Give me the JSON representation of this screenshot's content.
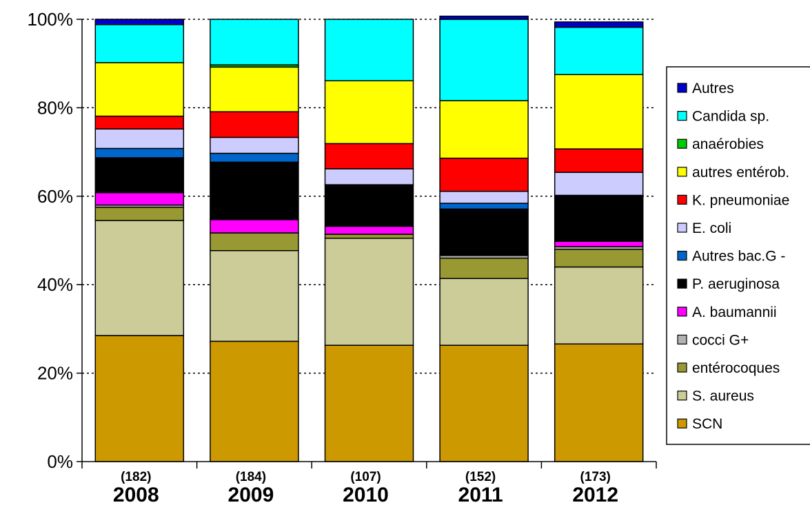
{
  "chart_data": {
    "type": "bar",
    "stacked": true,
    "percent": true,
    "categories": [
      "2008",
      "2009",
      "2010",
      "2011",
      "2012"
    ],
    "counts": [
      "(182)",
      "(184)",
      "(107)",
      "(152)",
      "(173)"
    ],
    "ylim": [
      0,
      100
    ],
    "yticks": [
      "0%",
      "20%",
      "40%",
      "60%",
      "80%",
      "100%"
    ],
    "grid": true,
    "legend_position": "right",
    "series": [
      {
        "name": "SCN",
        "color": "#CC9900",
        "values": [
          28.5,
          27.2,
          26.3,
          26.3,
          26.6
        ]
      },
      {
        "name": "S. aureus",
        "color": "#CCCC99",
        "values": [
          26.0,
          20.5,
          24.2,
          15.1,
          17.4
        ]
      },
      {
        "name": "entérocoques",
        "color": "#999933",
        "values": [
          3.0,
          4.0,
          0.9,
          4.6,
          4.0
        ]
      },
      {
        "name": "cocci G+",
        "color": "#B2B2B2",
        "values": [
          0.5,
          0.0,
          0.0,
          0.6,
          0.6
        ]
      },
      {
        "name": "A. baumannii",
        "color": "#FF00FF",
        "values": [
          2.8,
          3.0,
          1.8,
          0.0,
          1.2
        ]
      },
      {
        "name": "P. aeruginosa",
        "color": "#000000",
        "values": [
          7.9,
          13.0,
          9.4,
          10.5,
          10.4
        ]
      },
      {
        "name": "Autres bac.G -",
        "color": "#0066CC",
        "values": [
          2.1,
          2.0,
          0.0,
          1.3,
          0.0
        ]
      },
      {
        "name": "E. coli",
        "color": "#CCCCFF",
        "values": [
          4.4,
          3.6,
          3.6,
          2.7,
          5.2
        ]
      },
      {
        "name": "K. pneumoniae",
        "color": "#FF0000",
        "values": [
          2.9,
          5.8,
          5.7,
          7.5,
          5.3
        ]
      },
      {
        "name": "autres entérob.",
        "color": "#FFFF00",
        "values": [
          12.1,
          10.1,
          14.2,
          13.0,
          16.8
        ]
      },
      {
        "name": "anaérobies",
        "color": "#00CC00",
        "values": [
          0.0,
          0.5,
          0.0,
          0.0,
          0.0
        ]
      },
      {
        "name": "Candida sp.",
        "color": "#00FFFF",
        "values": [
          8.6,
          10.3,
          13.9,
          18.4,
          10.7
        ]
      },
      {
        "name": "Autres",
        "color": "#0000CC",
        "values": [
          1.2,
          0.0,
          0.0,
          0.7,
          1.2
        ]
      }
    ]
  }
}
